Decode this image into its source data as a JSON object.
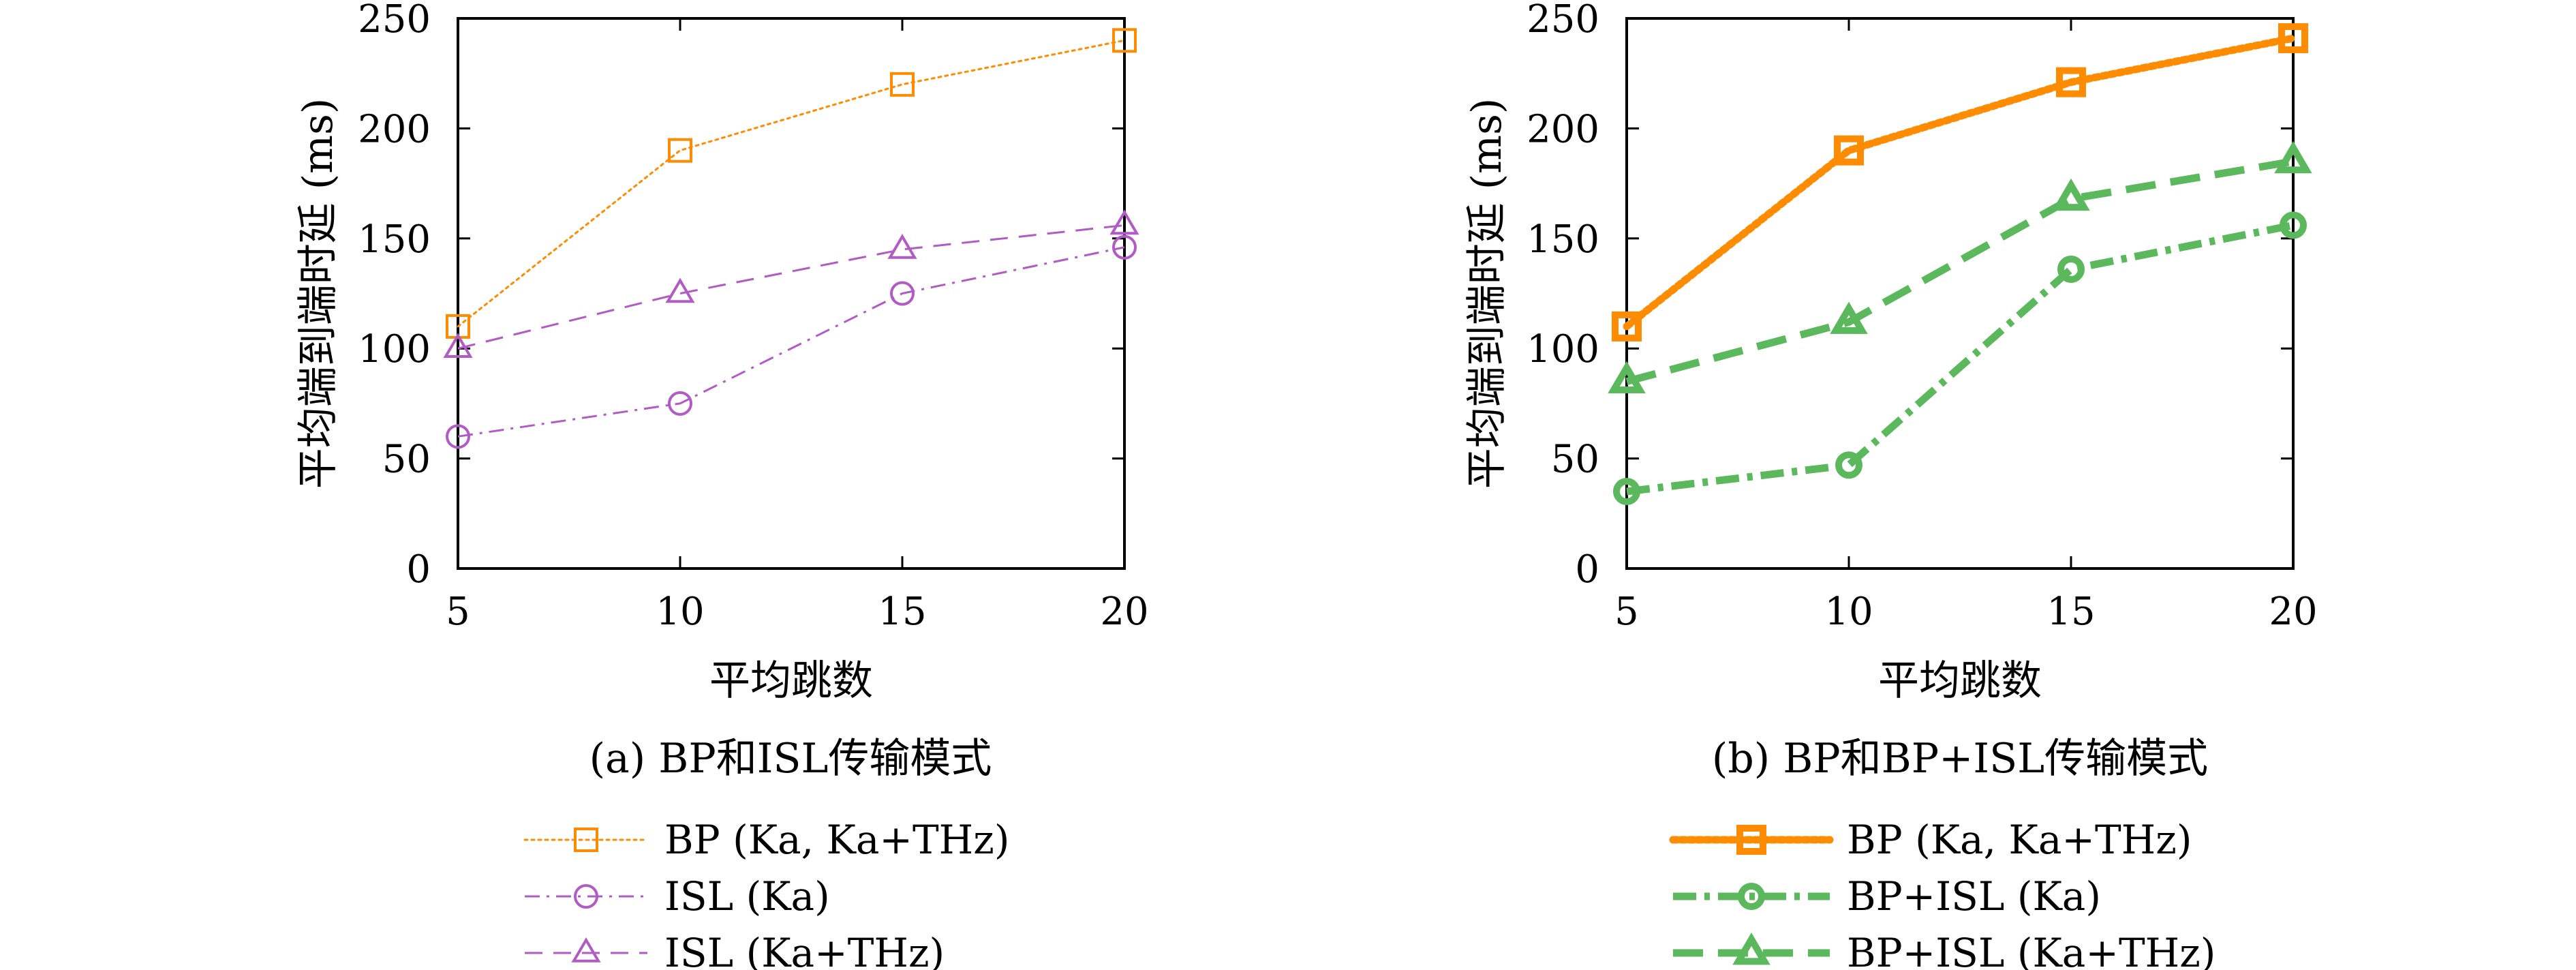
{
  "chart_data": [
    {
      "type": "line",
      "panel": "a",
      "caption": "(a) BP和ISL传输模式",
      "xlabel": "平均跳数",
      "ylabel": "平均端到端时延 (ms)",
      "x": [
        5,
        10,
        15,
        20
      ],
      "xlim": [
        5,
        20
      ],
      "ylim": [
        0,
        250
      ],
      "xticks": [
        "5",
        "10",
        "15",
        "20"
      ],
      "yticks": [
        "0",
        "50",
        "100",
        "150",
        "200",
        "250"
      ],
      "legend_position": "below",
      "series": [
        {
          "name": "BP (Ka, Ka+THz)",
          "values": [
            110,
            190,
            220,
            240
          ],
          "color": "#ff8c00",
          "marker": "square",
          "dash": "dotted",
          "bold": false
        },
        {
          "name": "ISL (Ka)",
          "values": [
            60,
            75,
            125,
            146
          ],
          "color": "#b05cc4",
          "marker": "circle",
          "dash": "dashdot",
          "bold": false
        },
        {
          "name": "ISL (Ka+THz)",
          "values": [
            100,
            125,
            145,
            156
          ],
          "color": "#b05cc4",
          "marker": "triangle",
          "dash": "dashed",
          "bold": false
        }
      ]
    },
    {
      "type": "line",
      "panel": "b",
      "caption": "(b) BP和BP+ISL传输模式",
      "xlabel": "平均跳数",
      "ylabel": "平均端到端时延 (ms)",
      "x": [
        5,
        10,
        15,
        20
      ],
      "xlim": [
        5,
        20
      ],
      "ylim": [
        0,
        250
      ],
      "xticks": [
        "5",
        "10",
        "15",
        "20"
      ],
      "yticks": [
        "0",
        "50",
        "100",
        "150",
        "200",
        "250"
      ],
      "legend_position": "below",
      "series": [
        {
          "name": "BP (Ka, Ka+THz)",
          "values": [
            110,
            190,
            221,
            241
          ],
          "color": "#ff8c00",
          "marker": "square",
          "dash": "dotted",
          "bold": true
        },
        {
          "name": "BP+ISL (Ka)",
          "values": [
            35,
            47,
            136,
            156
          ],
          "color": "#5cb85c",
          "marker": "circle",
          "dash": "dashdot",
          "bold": true
        },
        {
          "name": "BP+ISL (Ka+THz)",
          "values": [
            85,
            112,
            168,
            185
          ],
          "color": "#5cb85c",
          "marker": "triangle",
          "dash": "dashed",
          "bold": true
        }
      ]
    }
  ]
}
